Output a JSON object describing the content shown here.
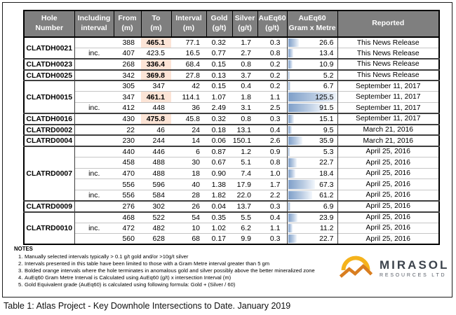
{
  "table": {
    "headers": [
      "Hole\nNumber",
      "Including\ninterval",
      "From\n(m)",
      "To\n(m)",
      "Interval\n(m)",
      "Gold\n(g/t)",
      "Silver\n(g/t)",
      "AuEq60\n(g/t)",
      "AuEq60\nGram x Metre",
      "Reported"
    ],
    "bar_max": 125.5,
    "groups": [
      {
        "hole": "CLATDH0021",
        "rows": [
          {
            "inc": "",
            "from": "388",
            "to": "465.1",
            "to_highlight": true,
            "interval": "77.1",
            "gold": "0.32",
            "silver": "1.7",
            "aueq": "0.3",
            "gxm": "26.6",
            "reported": "This News Release"
          },
          {
            "inc": "inc.",
            "from": "407",
            "to": "423.5",
            "to_highlight": false,
            "interval": "16.5",
            "gold": "0.77",
            "silver": "2.7",
            "aueq": "0.8",
            "gxm": "13.4",
            "reported": "This News Release"
          }
        ]
      },
      {
        "hole": "CLATDH0023",
        "rows": [
          {
            "inc": "",
            "from": "268",
            "to": "336.4",
            "to_highlight": true,
            "interval": "68.4",
            "gold": "0.15",
            "silver": "0.8",
            "aueq": "0.2",
            "gxm": "10.9",
            "reported": "This News Release"
          }
        ]
      },
      {
        "hole": "CLATDH0025",
        "rows": [
          {
            "inc": "",
            "from": "342",
            "to": "369.8",
            "to_highlight": true,
            "interval": "27.8",
            "gold": "0.13",
            "silver": "3.7",
            "aueq": "0.2",
            "gxm": "5.2",
            "reported": "This News Release"
          }
        ]
      },
      {
        "hole": "CLATDH0015",
        "rows": [
          {
            "inc": "",
            "from": "305",
            "to": "347",
            "to_highlight": false,
            "interval": "42",
            "gold": "0.15",
            "silver": "0.4",
            "aueq": "0.2",
            "gxm": "6.7",
            "reported": "September 11, 2017"
          },
          {
            "inc": "",
            "from": "347",
            "to": "461.1",
            "to_highlight": true,
            "interval": "114.1",
            "gold": "1.07",
            "silver": "1.8",
            "aueq": "1.1",
            "gxm": "125.5",
            "reported": "September 11, 2017"
          },
          {
            "inc": "inc.",
            "from": "412",
            "to": "448",
            "to_highlight": false,
            "interval": "36",
            "gold": "2.49",
            "silver": "3.1",
            "aueq": "2.5",
            "gxm": "91.5",
            "reported": "September 11, 2017"
          }
        ]
      },
      {
        "hole": "CLATDH0016",
        "rows": [
          {
            "inc": "",
            "from": "430",
            "to": "475.8",
            "to_highlight": true,
            "interval": "45.8",
            "gold": "0.32",
            "silver": "0.8",
            "aueq": "0.3",
            "gxm": "15.1",
            "reported": "September 11, 2017"
          }
        ]
      },
      {
        "hole": "CLATRD0002",
        "rows": [
          {
            "inc": "",
            "from": "22",
            "to": "46",
            "to_highlight": false,
            "interval": "24",
            "gold": "0.18",
            "silver": "13.1",
            "aueq": "0.4",
            "gxm": "9.5",
            "reported": "March 21, 2016"
          }
        ]
      },
      {
        "hole": "CLATRD0004",
        "rows": [
          {
            "inc": "",
            "from": "230",
            "to": "244",
            "to_highlight": false,
            "interval": "14",
            "gold": "0.06",
            "silver": "150.1",
            "aueq": "2.6",
            "gxm": "35.9",
            "reported": "March 21, 2016"
          }
        ]
      },
      {
        "hole": "CLATRD0007",
        "rows": [
          {
            "inc": "",
            "from": "440",
            "to": "446",
            "to_highlight": false,
            "interval": "6",
            "gold": "0.87",
            "silver": "1.2",
            "aueq": "0.9",
            "gxm": "5.3",
            "reported": "April 25, 2016"
          },
          {
            "inc": "",
            "from": "458",
            "to": "488",
            "to_highlight": false,
            "interval": "30",
            "gold": "0.67",
            "silver": "5.1",
            "aueq": "0.8",
            "gxm": "22.7",
            "reported": "April 25, 2016"
          },
          {
            "inc": "inc.",
            "from": "470",
            "to": "488",
            "to_highlight": false,
            "interval": "18",
            "gold": "0.90",
            "silver": "7.4",
            "aueq": "1.0",
            "gxm": "18.4",
            "reported": "April 25, 2016"
          },
          {
            "inc": "",
            "from": "556",
            "to": "596",
            "to_highlight": false,
            "interval": "40",
            "gold": "1.38",
            "silver": "17.9",
            "aueq": "1.7",
            "gxm": "67.3",
            "reported": "April 25, 2016"
          },
          {
            "inc": "inc.",
            "from": "556",
            "to": "584",
            "to_highlight": false,
            "interval": "28",
            "gold": "1.82",
            "silver": "22.0",
            "aueq": "2.2",
            "gxm": "61.2",
            "reported": "April 25, 2016"
          }
        ]
      },
      {
        "hole": "CLATRD0009",
        "rows": [
          {
            "inc": "",
            "from": "276",
            "to": "302",
            "to_highlight": false,
            "interval": "26",
            "gold": "0.04",
            "silver": "13.7",
            "aueq": "0.3",
            "gxm": "6.9",
            "reported": "April 25, 2016"
          }
        ]
      },
      {
        "hole": "CLATRD0010",
        "rows": [
          {
            "inc": "",
            "from": "468",
            "to": "522",
            "to_highlight": false,
            "interval": "54",
            "gold": "0.35",
            "silver": "5.5",
            "aueq": "0.4",
            "gxm": "23.9",
            "reported": "April 25, 2016"
          },
          {
            "inc": "inc.",
            "from": "472",
            "to": "482",
            "to_highlight": false,
            "interval": "10",
            "gold": "1.02",
            "silver": "6.2",
            "aueq": "1.1",
            "gxm": "11.2",
            "reported": "April 25, 2016"
          },
          {
            "inc": "",
            "from": "560",
            "to": "628",
            "to_highlight": false,
            "interval": "68",
            "gold": "0.17",
            "silver": "9.9",
            "aueq": "0.3",
            "gxm": "22.7",
            "reported": "April 25, 2016"
          }
        ]
      }
    ]
  },
  "notes": {
    "title": "NOTES",
    "items": [
      "Manually selected intervals typically > 0.1 g/t gold and/or >10g/t silver",
      "Intervals presented in this table have been limited to those with a Gram Metre interval greater than 5 gm",
      "Bolded orange intervals where the hole terminates in anomalous gold and silver possibly above the better mineralized zone",
      "AuEq60 Gram Metre Interval is Calculated using AuEq60 (g/t) x intersection Interval (m)",
      "Gold Equivalent grade (AuEq60) is calculated using following formula: Gold + (Silver / 60)"
    ]
  },
  "logo": {
    "name": "MIRASOL",
    "subtitle": "RESOURCES LTD"
  },
  "caption": "Table 1: Atlas Project - Key Downhole Intersections to Date. January 2019",
  "colors": {
    "header_bg": "#7f7f7f",
    "highlight_orange": "#fce4d6",
    "bar_blue": "#7e9fc9",
    "bar_fade": "#f3f7fc",
    "logo_sun": "#f5b31c",
    "logo_mountain": "#d97e20",
    "logo_text": "#3c434c"
  }
}
